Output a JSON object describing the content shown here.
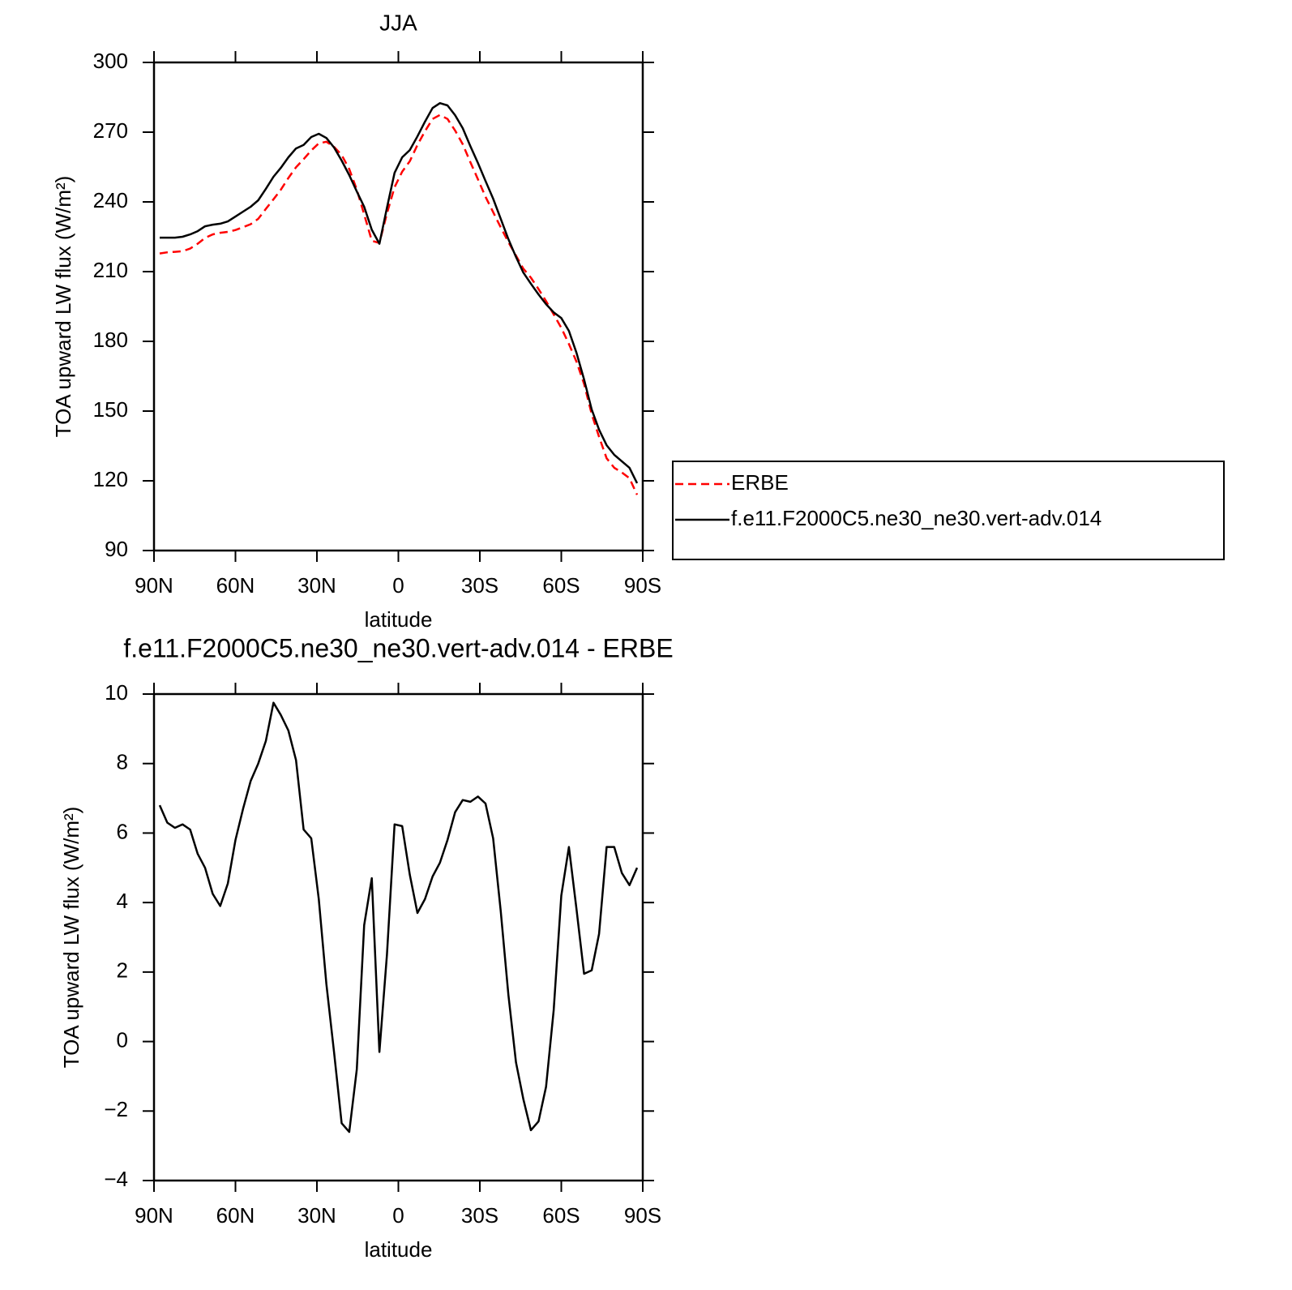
{
  "chart_data": [
    {
      "type": "line",
      "title": "JJA",
      "x_label": "latitude",
      "y_label": "TOA upward LW flux (W/m²)",
      "x": [
        87.9,
        85.1,
        82.3,
        79.5,
        76.7,
        73.9,
        71.2,
        68.4,
        65.6,
        62.8,
        60.0,
        57.2,
        54.4,
        51.6,
        48.8,
        46.0,
        43.3,
        40.5,
        37.7,
        34.9,
        32.1,
        29.3,
        26.5,
        23.7,
        20.9,
        18.1,
        15.3,
        12.6,
        9.8,
        7.0,
        4.2,
        1.4,
        -1.4,
        -4.2,
        -7.0,
        -9.8,
        -12.6,
        -15.3,
        -18.1,
        -20.9,
        -23.7,
        -26.5,
        -29.3,
        -32.1,
        -34.9,
        -37.7,
        -40.5,
        -43.3,
        -46.0,
        -48.8,
        -51.6,
        -54.4,
        -57.2,
        -60.0,
        -62.8,
        -65.6,
        -68.4,
        -71.2,
        -73.9,
        -76.7,
        -79.5,
        -82.3,
        -85.1,
        -87.9
      ],
      "series": [
        {
          "name": "ERBE",
          "color": "#ff0000",
          "line_style": "dashed",
          "values": [
            217.8,
            218.3,
            218.5,
            218.8,
            219.9,
            222.0,
            224.5,
            226.0,
            226.7,
            227.1,
            227.9,
            229.1,
            230.4,
            232.7,
            237.0,
            241.1,
            245.2,
            250.3,
            254.9,
            258.4,
            262.1,
            265.2,
            265.9,
            263.7,
            260.2,
            254.1,
            245.3,
            234.6,
            223.3,
            222.3,
            235.0,
            246.3,
            253.0,
            257.5,
            264.5,
            270.4,
            275.7,
            277.4,
            275.7,
            270.7,
            264.8,
            257.1,
            249.7,
            242.2,
            235.6,
            229.0,
            222.7,
            216.9,
            211.3,
            207.4,
            202.5,
            197.3,
            191.6,
            185.8,
            178.9,
            171.2,
            161.7,
            148.7,
            138.9,
            129.7,
            125.6,
            123.6,
            121.1,
            114.0
          ]
        },
        {
          "name": "f.e11.F2000C5.ne30_ne30.vert-adv.014",
          "color": "#000000",
          "line_style": "solid",
          "values": [
            224.6,
            224.6,
            224.6,
            225.0,
            226.0,
            227.4,
            229.5,
            230.2,
            230.6,
            231.6,
            233.7,
            235.8,
            237.9,
            240.7,
            245.6,
            250.8,
            254.6,
            259.2,
            263.0,
            264.5,
            267.9,
            269.3,
            267.5,
            263.4,
            257.8,
            251.5,
            244.5,
            237.9,
            228.0,
            222.0,
            237.5,
            252.5,
            259.2,
            262.3,
            268.2,
            274.5,
            280.4,
            282.5,
            281.5,
            277.3,
            271.7,
            264.0,
            256.7,
            249.0,
            241.4,
            232.7,
            224.0,
            216.3,
            209.6,
            204.8,
            200.2,
            196.0,
            192.5,
            190.0,
            184.5,
            175.0,
            163.6,
            150.7,
            142.0,
            135.3,
            131.2,
            128.4,
            125.6,
            119.0
          ]
        }
      ],
      "xlim": [
        90,
        -90
      ],
      "xticks": [
        {
          "value": 90,
          "label": "90N"
        },
        {
          "value": 60,
          "label": "60N"
        },
        {
          "value": 30,
          "label": "30N"
        },
        0,
        {
          "value": -30,
          "label": "30S"
        },
        {
          "value": -60,
          "label": "60S"
        },
        {
          "value": -90,
          "label": "90S"
        }
      ],
      "ylim": [
        90,
        300
      ],
      "yticks": [
        90,
        120,
        150,
        180,
        210,
        240,
        270,
        300
      ],
      "grid": false,
      "legend": "right"
    },
    {
      "type": "line",
      "title": "f.e11.F2000C5.ne30_ne30.vert-adv.014 - ERBE",
      "x_label": "latitude",
      "y_label": "TOA upward LW flux (W/m²)",
      "x": [
        87.9,
        85.1,
        82.3,
        79.5,
        76.7,
        73.9,
        71.2,
        68.4,
        65.6,
        62.8,
        60.0,
        57.2,
        54.4,
        51.6,
        48.8,
        46.0,
        43.3,
        40.5,
        37.7,
        34.9,
        32.1,
        29.3,
        26.5,
        23.7,
        20.9,
        18.1,
        15.3,
        12.6,
        9.8,
        7.0,
        4.2,
        1.4,
        -1.4,
        -4.2,
        -7.0,
        -9.8,
        -12.6,
        -15.3,
        -18.1,
        -20.9,
        -23.7,
        -26.5,
        -29.3,
        -32.1,
        -34.9,
        -37.7,
        -40.5,
        -43.3,
        -46.0,
        -48.8,
        -51.6,
        -54.4,
        -57.2,
        -60.0,
        -62.8,
        -65.6,
        -68.4,
        -71.2,
        -73.9,
        -76.7,
        -79.5,
        -82.3,
        -85.1,
        -87.9
      ],
      "series": [
        {
          "color": "#000000",
          "line_style": "solid",
          "values": [
            6.8,
            6.3,
            6.15,
            6.25,
            6.1,
            5.4,
            5.0,
            4.25,
            3.9,
            4.55,
            5.8,
            6.7,
            7.5,
            8.0,
            8.65,
            9.75,
            9.4,
            8.95,
            8.1,
            6.1,
            5.85,
            4.1,
            1.65,
            -0.3,
            -2.35,
            -2.6,
            -0.8,
            3.35,
            4.7,
            -0.3,
            2.5,
            6.25,
            6.2,
            4.8,
            3.7,
            4.1,
            4.75,
            5.15,
            5.8,
            6.6,
            6.95,
            6.9,
            7.05,
            6.85,
            5.85,
            3.75,
            1.35,
            -0.6,
            -1.65,
            -2.55,
            -2.3,
            -1.3,
            0.9,
            4.2,
            5.6,
            3.8,
            1.95,
            2.05,
            3.1,
            5.6,
            5.6,
            4.85,
            4.5,
            5.0
          ]
        }
      ],
      "xlim": [
        90,
        -90
      ],
      "xticks": [
        {
          "value": 90,
          "label": "90N"
        },
        {
          "value": 60,
          "label": "60N"
        },
        {
          "value": 30,
          "label": "30N"
        },
        0,
        {
          "value": -30,
          "label": "30S"
        },
        {
          "value": -60,
          "label": "60S"
        },
        {
          "value": -90,
          "label": "90S"
        }
      ],
      "ylim": [
        -4,
        10
      ],
      "yticks": [
        {
          "value": -4,
          "label": "−4"
        },
        {
          "value": -2,
          "label": "−2"
        },
        0,
        2,
        4,
        6,
        8,
        10
      ],
      "grid": false
    }
  ]
}
